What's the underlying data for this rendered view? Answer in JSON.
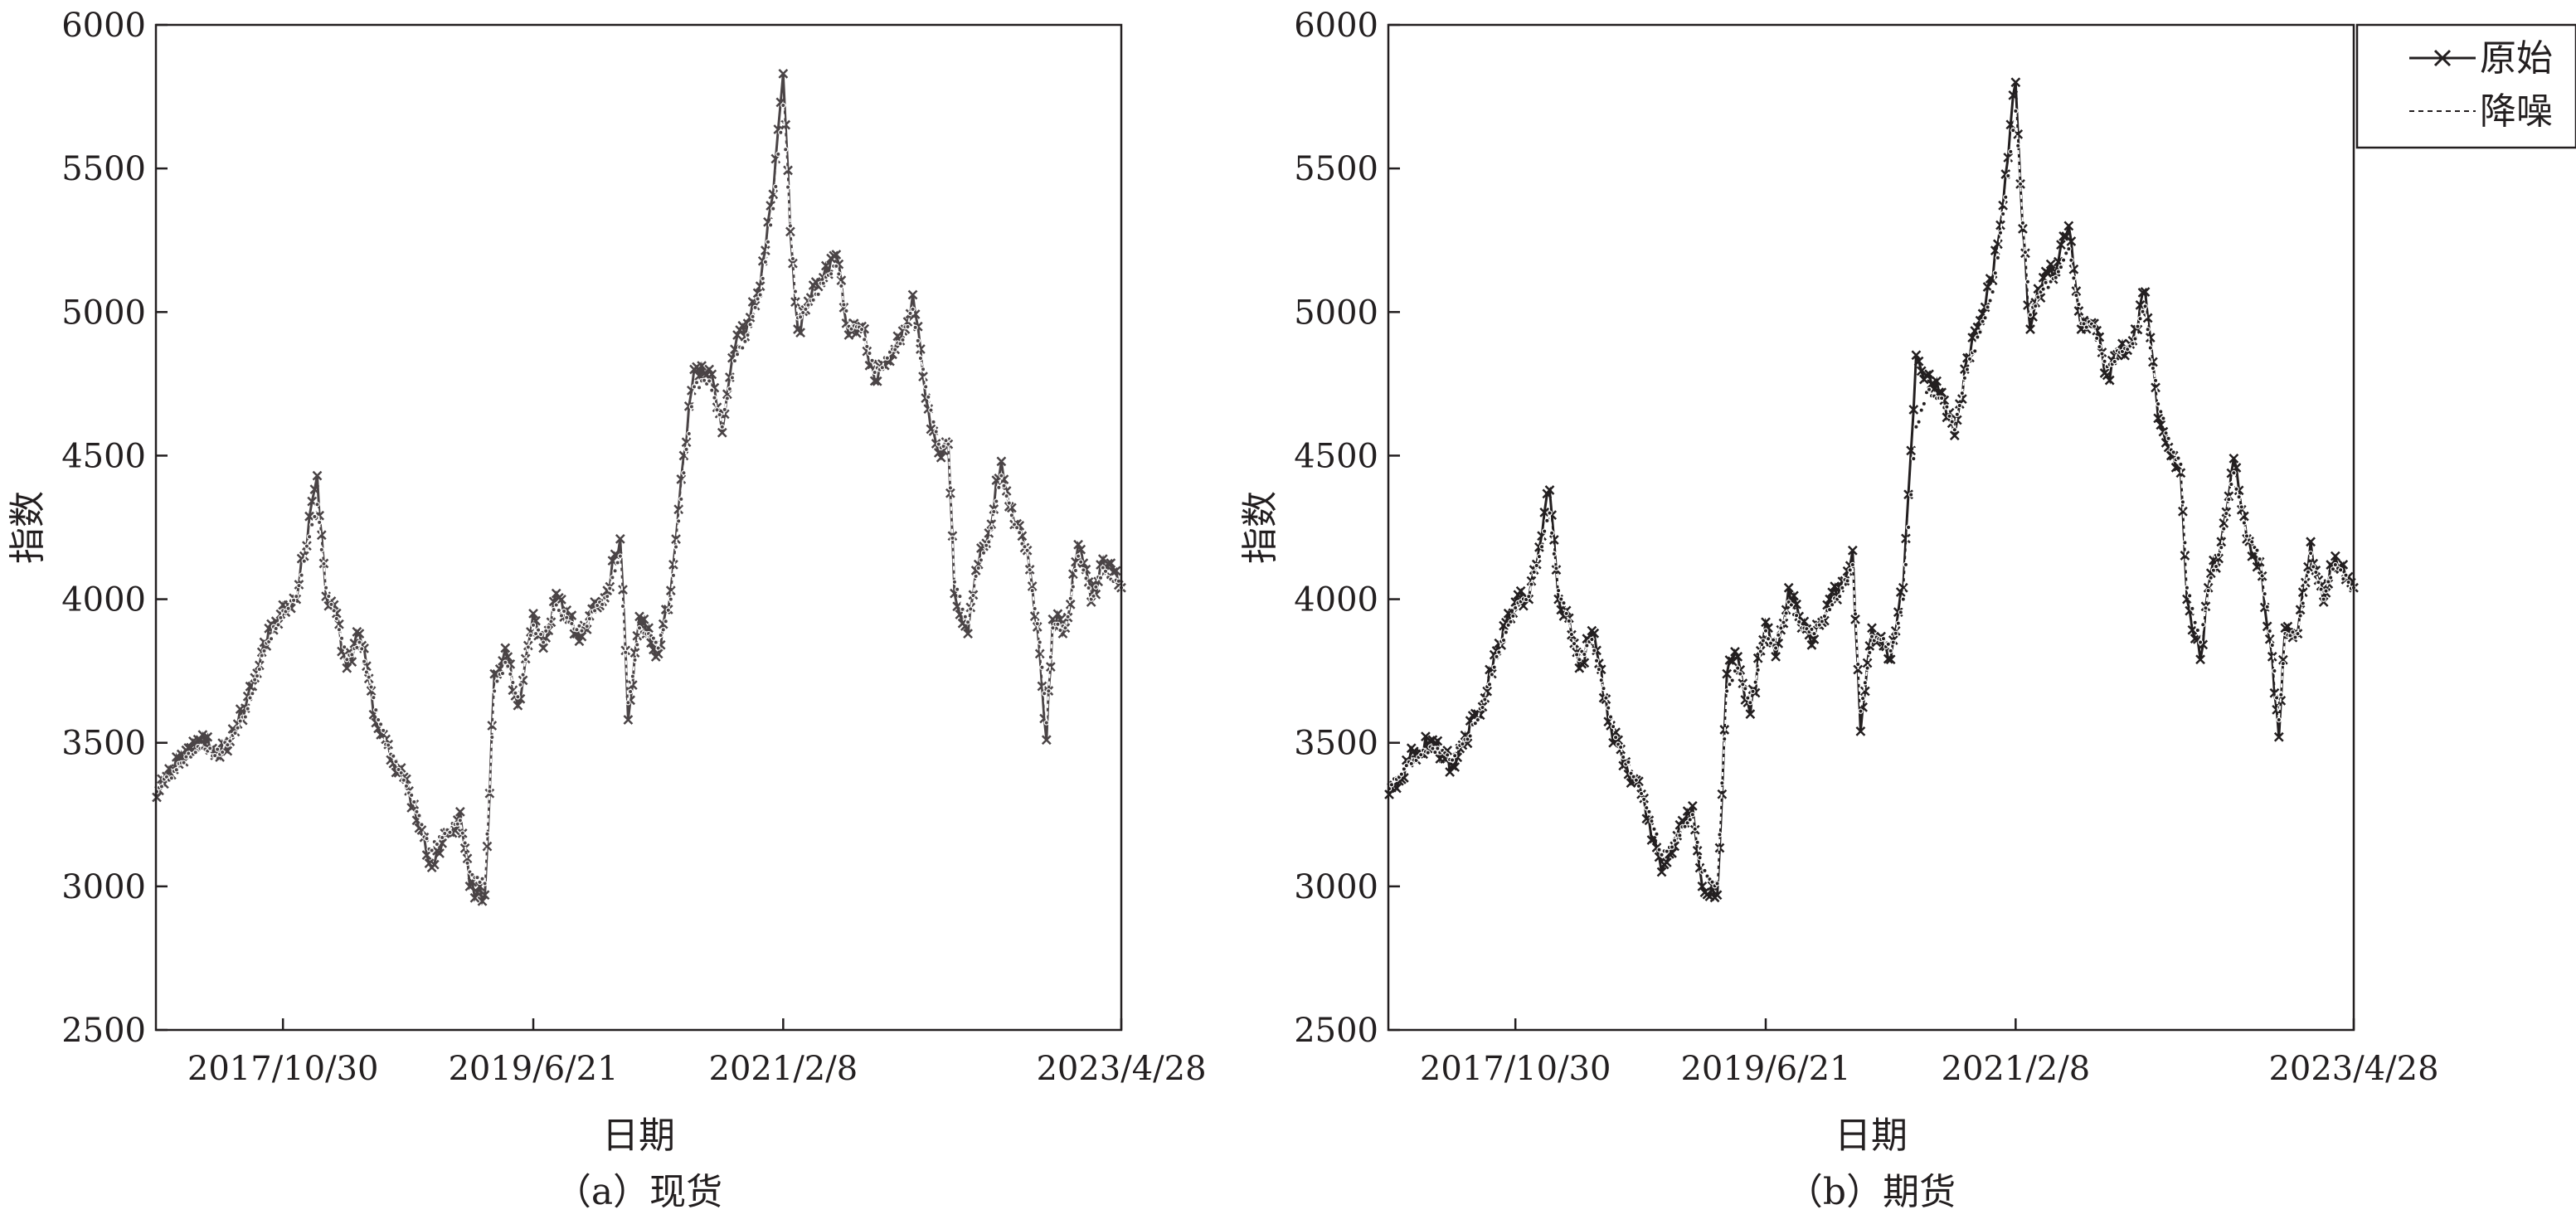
{
  "legend": {
    "original_label": "原始",
    "denoised_label": "降噪",
    "placement": "top-right of panel (b), outside plot area"
  },
  "colors": {
    "spot_series": "#4a4446",
    "futures_series": "#231f20",
    "axes": "#231f20",
    "background": "#ffffff"
  },
  "chart_data": [
    {
      "type": "line",
      "panel_label": "（a）现货",
      "xlabel": "日期",
      "ylabel": "指数",
      "ylim": [
        2500,
        6000
      ],
      "yticks": [
        2500,
        3000,
        3500,
        4000,
        4500,
        5000,
        5500,
        6000
      ],
      "xticks": [
        "2017/10/30",
        "2019/6/21",
        "2021/2/8",
        "2023/4/28"
      ],
      "xlim": [
        "2016/12/30",
        "2023/4/28"
      ],
      "grid": false,
      "legend": "none",
      "markers": {
        "original": "x",
        "denoised": "circle"
      },
      "series": [
        {
          "name": "原始",
          "x": [
            "2017/1/1",
            "2017/3/1",
            "2017/4/15",
            "2017/6/1",
            "2017/8/1",
            "2017/9/15",
            "2017/10/30",
            "2017/12/1",
            "2018/1/20",
            "2018/2/10",
            "2018/3/1",
            "2018/4/1",
            "2018/5/1",
            "2018/6/15",
            "2018/7/15",
            "2018/8/15",
            "2018/9/15",
            "2018/10/15",
            "2018/11/15",
            "2018/12/28",
            "2019/1/20",
            "2019/2/25",
            "2019/3/20",
            "2019/4/15",
            "2019/5/15",
            "2019/6/21",
            "2019/7/15",
            "2019/8/15",
            "2019/9/15",
            "2019/10/15",
            "2019/11/15",
            "2019/12/15",
            "2020/1/15",
            "2020/2/3",
            "2020/3/1",
            "2020/3/23",
            "2020/4/15",
            "2020/5/15",
            "2020/6/15",
            "2020/7/10",
            "2020/8/15",
            "2020/9/15",
            "2020/10/15",
            "2020/11/15",
            "2020/12/15",
            "2021/1/15",
            "2021/2/8",
            "2021/2/25",
            "2021/3/15",
            "2021/4/15",
            "2021/5/15",
            "2021/6/15",
            "2021/7/15",
            "2021/8/15",
            "2021/9/15",
            "2021/10/15",
            "2021/11/15",
            "2021/12/15",
            "2022/1/15",
            "2022/2/15",
            "2022/3/10",
            "2022/3/25",
            "2022/4/26",
            "2022/5/15",
            "2022/6/15",
            "2022/7/15",
            "2022/8/15",
            "2022/9/15",
            "2022/10/15",
            "2022/10/31",
            "2022/11/15",
            "2022/12/15",
            "2023/1/15",
            "2023/2/15",
            "2023/3/15",
            "2023/4/28"
          ],
          "values": [
            3310,
            3460,
            3510,
            3450,
            3620,
            3850,
            3980,
            4000,
            4430,
            4010,
            3980,
            3760,
            3880,
            3550,
            3440,
            3380,
            3230,
            3080,
            3150,
            3260,
            3000,
            2970,
            3740,
            3830,
            3630,
            3950,
            3830,
            4020,
            3930,
            3870,
            3990,
            4030,
            4210,
            3580,
            3940,
            3900,
            3810,
            4030,
            4500,
            4800,
            4800,
            4580,
            4870,
            4960,
            5090,
            5410,
            5830,
            5280,
            4940,
            5050,
            5120,
            5200,
            4920,
            4950,
            4760,
            4830,
            4900,
            5060,
            4700,
            4510,
            4540,
            4020,
            3880,
            4100,
            4230,
            4480,
            4260,
            4170,
            3810,
            3510,
            3930,
            3900,
            4190,
            3990,
            4140,
            4040
          ]
        },
        {
          "name": "降噪",
          "x": [
            "2017/1/1",
            "2017/3/1",
            "2017/4/15",
            "2017/6/1",
            "2017/8/1",
            "2017/9/15",
            "2017/10/30",
            "2017/12/1",
            "2018/1/20",
            "2018/2/10",
            "2018/3/1",
            "2018/4/1",
            "2018/5/1",
            "2018/6/15",
            "2018/7/15",
            "2018/8/15",
            "2018/9/15",
            "2018/10/15",
            "2018/11/15",
            "2018/12/28",
            "2019/1/20",
            "2019/2/25",
            "2019/3/20",
            "2019/4/15",
            "2019/5/15",
            "2019/6/21",
            "2019/7/15",
            "2019/8/15",
            "2019/9/15",
            "2019/10/15",
            "2019/11/15",
            "2019/12/15",
            "2020/1/15",
            "2020/2/3",
            "2020/3/1",
            "2020/3/23",
            "2020/4/15",
            "2020/5/15",
            "2020/6/15",
            "2020/7/10",
            "2020/8/15",
            "2020/9/15",
            "2020/10/15",
            "2020/11/15",
            "2020/12/15",
            "2021/1/15",
            "2021/2/8",
            "2021/2/25",
            "2021/3/15",
            "2021/4/15",
            "2021/5/15",
            "2021/6/15",
            "2021/7/15",
            "2021/8/15",
            "2021/9/15",
            "2021/10/15",
            "2021/11/15",
            "2021/12/15",
            "2022/1/15",
            "2022/2/15",
            "2022/3/10",
            "2022/3/25",
            "2022/4/26",
            "2022/5/15",
            "2022/6/15",
            "2022/7/15",
            "2022/8/15",
            "2022/9/15",
            "2022/10/15",
            "2022/10/31",
            "2022/11/15",
            "2022/12/15",
            "2023/1/15",
            "2023/2/15",
            "2023/3/15",
            "2023/4/28"
          ],
          "values": [
            3330,
            3430,
            3480,
            3460,
            3590,
            3820,
            3960,
            4010,
            4330,
            4040,
            3960,
            3790,
            3850,
            3580,
            3460,
            3370,
            3260,
            3130,
            3170,
            3230,
            3050,
            3010,
            3680,
            3780,
            3660,
            3910,
            3850,
            3980,
            3920,
            3890,
            3960,
            4010,
            4150,
            3640,
            3900,
            3880,
            3830,
            4000,
            4440,
            4740,
            4760,
            4600,
            4830,
            4920,
            5060,
            5360,
            5720,
            5300,
            4980,
            5040,
            5100,
            5160,
            4950,
            4940,
            4790,
            4840,
            4890,
            5010,
            4740,
            4540,
            4540,
            4060,
            3920,
            4080,
            4200,
            4430,
            4260,
            4170,
            3850,
            3570,
            3900,
            3900,
            4150,
            4000,
            4110,
            4040
          ]
        }
      ]
    },
    {
      "type": "line",
      "panel_label": "（b）期货",
      "xlabel": "日期",
      "ylabel": "指数",
      "ylim": [
        2500,
        6000
      ],
      "yticks": [
        2500,
        3000,
        3500,
        4000,
        4500,
        5000,
        5500,
        6000
      ],
      "xticks": [
        "2017/10/30",
        "2019/6/21",
        "2021/2/8",
        "2023/4/28"
      ],
      "xlim": [
        "2016/12/30",
        "2023/4/28"
      ],
      "grid": false,
      "legend": "top-right",
      "markers": {
        "original": "x",
        "denoised": "circle"
      },
      "series": [
        {
          "name": "原始",
          "x": [
            "2017/1/1",
            "2017/3/1",
            "2017/4/15",
            "2017/6/1",
            "2017/8/1",
            "2017/9/15",
            "2017/10/30",
            "2017/12/1",
            "2018/1/20",
            "2018/2/10",
            "2018/3/1",
            "2018/4/1",
            "2018/5/1",
            "2018/6/15",
            "2018/7/15",
            "2018/8/15",
            "2018/9/15",
            "2018/10/15",
            "2018/11/15",
            "2018/12/28",
            "2019/1/20",
            "2019/2/25",
            "2019/3/20",
            "2019/4/15",
            "2019/5/15",
            "2019/6/21",
            "2019/7/15",
            "2019/8/15",
            "2019/9/15",
            "2019/10/15",
            "2019/11/15",
            "2019/12/15",
            "2020/1/15",
            "2020/2/3",
            "2020/3/1",
            "2020/3/23",
            "2020/4/15",
            "2020/5/15",
            "2020/6/15",
            "2020/7/10",
            "2020/8/15",
            "2020/9/15",
            "2020/10/15",
            "2020/11/15",
            "2020/12/15",
            "2021/1/15",
            "2021/2/8",
            "2021/2/25",
            "2021/3/15",
            "2021/4/15",
            "2021/5/15",
            "2021/6/15",
            "2021/7/15",
            "2021/8/15",
            "2021/9/15",
            "2021/10/15",
            "2021/11/15",
            "2021/12/15",
            "2022/1/15",
            "2022/2/15",
            "2022/3/10",
            "2022/3/25",
            "2022/4/26",
            "2022/5/15",
            "2022/6/15",
            "2022/7/15",
            "2022/8/15",
            "2022/9/15",
            "2022/10/15",
            "2022/10/31",
            "2022/11/15",
            "2022/12/15",
            "2023/1/15",
            "2023/2/15",
            "2023/3/15",
            "2023/4/28"
          ],
          "values": [
            3320,
            3470,
            3510,
            3420,
            3600,
            3820,
            3990,
            4000,
            4380,
            4000,
            3960,
            3760,
            3890,
            3560,
            3420,
            3370,
            3230,
            3050,
            3140,
            3280,
            3000,
            2970,
            3740,
            3800,
            3600,
            3920,
            3800,
            4040,
            3900,
            3860,
            3980,
            4040,
            4170,
            3540,
            3900,
            3870,
            3790,
            4040,
            4850,
            4780,
            4720,
            4570,
            4840,
            4970,
            5110,
            5480,
            5800,
            5290,
            4940,
            5120,
            5140,
            5300,
            4940,
            4960,
            4780,
            4860,
            4900,
            5070,
            4630,
            4500,
            4440,
            4000,
            3790,
            4040,
            4200,
            4490,
            4210,
            4130,
            3800,
            3520,
            3900,
            3880,
            4200,
            3990,
            4150,
            4040
          ]
        },
        {
          "name": "降噪",
          "x": [
            "2017/1/1",
            "2017/3/1",
            "2017/4/15",
            "2017/6/1",
            "2017/8/1",
            "2017/9/15",
            "2017/10/30",
            "2017/12/1",
            "2018/1/20",
            "2018/2/10",
            "2018/3/1",
            "2018/4/1",
            "2018/5/1",
            "2018/6/15",
            "2018/7/15",
            "2018/8/15",
            "2018/9/15",
            "2018/10/15",
            "2018/11/15",
            "2018/12/28",
            "2019/1/20",
            "2019/2/25",
            "2019/3/20",
            "2019/4/15",
            "2019/5/15",
            "2019/6/21",
            "2019/7/15",
            "2019/8/15",
            "2019/9/15",
            "2019/10/15",
            "2019/11/15",
            "2019/12/15",
            "2020/1/15",
            "2020/2/3",
            "2020/3/1",
            "2020/3/23",
            "2020/4/15",
            "2020/5/15",
            "2020/6/15",
            "2020/7/10",
            "2020/8/15",
            "2020/9/15",
            "2020/10/15",
            "2020/11/15",
            "2020/12/15",
            "2021/1/15",
            "2021/2/8",
            "2021/2/25",
            "2021/3/15",
            "2021/4/15",
            "2021/5/15",
            "2021/6/15",
            "2021/7/15",
            "2021/8/15",
            "2021/9/15",
            "2021/10/15",
            "2021/11/15",
            "2021/12/15",
            "2022/1/15",
            "2022/2/15",
            "2022/3/10",
            "2022/3/25",
            "2022/4/26",
            "2022/5/15",
            "2022/6/15",
            "2022/7/15",
            "2022/8/15",
            "2022/9/15",
            "2022/10/15",
            "2022/10/31",
            "2022/11/15",
            "2022/12/15",
            "2023/1/15",
            "2023/2/15",
            "2023/3/15",
            "2023/4/28"
          ],
          "values": [
            3340,
            3440,
            3480,
            3440,
            3580,
            3800,
            3970,
            4010,
            4300,
            4030,
            3950,
            3790,
            3860,
            3590,
            3450,
            3370,
            3260,
            3110,
            3160,
            3250,
            3050,
            3010,
            3680,
            3760,
            3640,
            3890,
            3830,
            3990,
            3900,
            3880,
            3960,
            4010,
            4120,
            3610,
            3870,
            3860,
            3820,
            4000,
            4600,
            4720,
            4700,
            4590,
            4800,
            4930,
            5070,
            5400,
            5700,
            5310,
            4990,
            5080,
            5120,
            5220,
            4960,
            4950,
            4810,
            4860,
            4890,
            5020,
            4680,
            4520,
            4470,
            4040,
            3850,
            4030,
            4180,
            4440,
            4220,
            4140,
            3840,
            3580,
            3880,
            3880,
            4160,
            4000,
            4120,
            4040
          ]
        }
      ]
    }
  ]
}
